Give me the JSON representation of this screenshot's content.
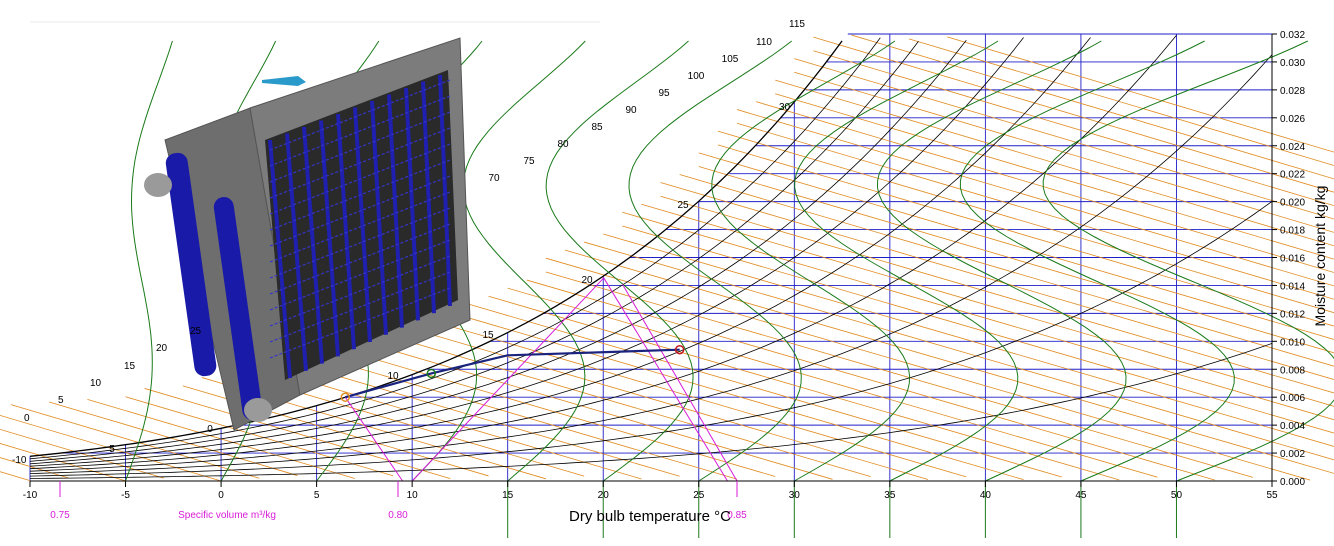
{
  "chart_data": {
    "type": "line",
    "title": "",
    "xlabel": "Dry bulb temperature °C",
    "ylabel": "Moisture content kg/kg",
    "xlim": [
      -10,
      55
    ],
    "ylim": [
      0,
      0.032
    ],
    "x_ticks": [
      "-10",
      "-5",
      "0",
      "5",
      "10",
      "15",
      "20",
      "25",
      "30",
      "35",
      "40",
      "45",
      "50",
      "55"
    ],
    "y_ticks": [
      "0.000",
      "0.002",
      "0.004",
      "0.006",
      "0.008",
      "0.010",
      "0.012",
      "0.014",
      "0.016",
      "0.018",
      "0.020",
      "0.022",
      "0.024",
      "0.026",
      "0.028",
      "0.030",
      "0.032"
    ],
    "specific_volume_label": "Specific volume m³/kg",
    "specific_volume_ticks": [
      "0.75",
      "0.80",
      "0.85"
    ],
    "wet_bulb_labels": [
      "-10",
      "0",
      "5",
      "10",
      "15",
      "20",
      "25",
      "30"
    ],
    "enthalpy_labels": [
      "0",
      "5",
      "10",
      "15",
      "20",
      "25",
      "70",
      "75",
      "80",
      "85",
      "90",
      "95",
      "100",
      "105",
      "110",
      "115"
    ],
    "process": {
      "points": [
        {
          "x": 6.5,
          "y": 0.006
        },
        {
          "x": 11.0,
          "y": 0.0077
        },
        {
          "x": 24.0,
          "y": 0.0094
        }
      ],
      "path": [
        {
          "x": 6.5,
          "y": 0.006
        },
        {
          "x": 11.0,
          "y": 0.0077
        },
        {
          "x": 15.0,
          "y": 0.009
        },
        {
          "x": 24.0,
          "y": 0.0094
        }
      ]
    },
    "grid": true,
    "colors": {
      "grid": "#1e1ec8",
      "enthalpy": "#e08a1e",
      "saturation": "#000000",
      "wetbulb": "#1a7a1a",
      "specific_volume": "#d81bd8",
      "process": "#1a237e",
      "coil_body": "#7a7a7a",
      "coil_tubes": "#1f1fb0"
    }
  }
}
